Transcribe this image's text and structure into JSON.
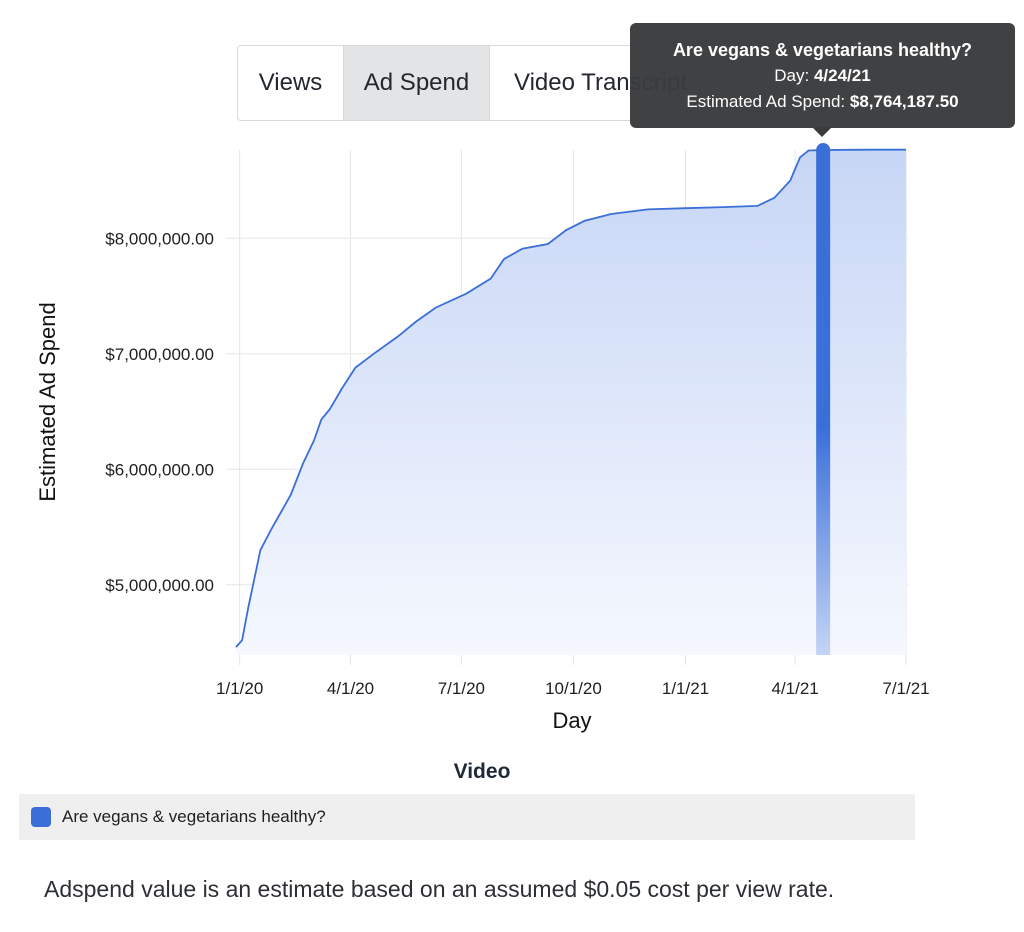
{
  "tabs": [
    {
      "label": "Views",
      "active": false
    },
    {
      "label": "Ad Spend",
      "active": true
    },
    {
      "label": "Video Transcript",
      "active": false
    }
  ],
  "tooltip": {
    "title": "Are vegans & vegetarians healthy?",
    "day_label": "Day: ",
    "day_value": "4/24/21",
    "spend_label": "Estimated Ad Spend: ",
    "spend_value": "$8,764,187.50"
  },
  "legend": {
    "title": "Video",
    "items": [
      {
        "label": "Are vegans & vegetarians healthy?",
        "color": "#3b6fd8"
      }
    ]
  },
  "note": "Adspend value is an estimate based on an assumed $0.05 cost per view rate.",
  "chart_data": {
    "type": "area",
    "xlabel": "Day",
    "ylabel": "Estimated Ad Spend",
    "x_tick_labels": [
      "1/1/20",
      "4/1/20",
      "7/1/20",
      "10/1/20",
      "1/1/21",
      "4/1/21",
      "7/1/21"
    ],
    "y_tick_labels": [
      "$5,000,000.00",
      "$6,000,000.00",
      "$7,000,000.00",
      "$8,000,000.00"
    ],
    "y_ticks": [
      5000000,
      6000000,
      7000000,
      8000000
    ],
    "ylim": [
      4450000,
      8780000
    ],
    "xlim": [
      "2019-12-29",
      "2021-07-01"
    ],
    "grid": true,
    "highlight": {
      "x": "2021-04-24",
      "y": 8764187.5
    },
    "series": [
      {
        "name": "Are vegans & vegetarians healthy?",
        "color": "#3b6fd8",
        "points": [
          [
            "2019-12-29",
            4460000
          ],
          [
            "2020-01-03",
            4520000
          ],
          [
            "2020-01-08",
            4800000
          ],
          [
            "2020-01-13",
            5050000
          ],
          [
            "2020-01-18",
            5300000
          ],
          [
            "2020-01-28",
            5500000
          ],
          [
            "2020-02-04",
            5630000
          ],
          [
            "2020-02-12",
            5780000
          ],
          [
            "2020-02-22",
            6050000
          ],
          [
            "2020-03-02",
            6250000
          ],
          [
            "2020-03-08",
            6430000
          ],
          [
            "2020-03-15",
            6520000
          ],
          [
            "2020-03-25",
            6700000
          ],
          [
            "2020-04-05",
            6880000
          ],
          [
            "2020-04-20",
            7000000
          ],
          [
            "2020-05-10",
            7150000
          ],
          [
            "2020-05-25",
            7280000
          ],
          [
            "2020-06-10",
            7400000
          ],
          [
            "2020-07-05",
            7520000
          ],
          [
            "2020-07-25",
            7650000
          ],
          [
            "2020-08-05",
            7820000
          ],
          [
            "2020-08-20",
            7910000
          ],
          [
            "2020-09-10",
            7950000
          ],
          [
            "2020-09-25",
            8070000
          ],
          [
            "2020-10-10",
            8150000
          ],
          [
            "2020-11-01",
            8210000
          ],
          [
            "2020-12-01",
            8250000
          ],
          [
            "2021-01-01",
            8260000
          ],
          [
            "2021-02-01",
            8270000
          ],
          [
            "2021-03-01",
            8280000
          ],
          [
            "2021-03-15",
            8350000
          ],
          [
            "2021-03-28",
            8500000
          ],
          [
            "2021-04-05",
            8700000
          ],
          [
            "2021-04-12",
            8760000
          ],
          [
            "2021-04-24",
            8764187.5
          ],
          [
            "2021-05-15",
            8766000
          ],
          [
            "2021-06-01",
            8767000
          ],
          [
            "2021-07-01",
            8767000
          ]
        ]
      }
    ]
  }
}
